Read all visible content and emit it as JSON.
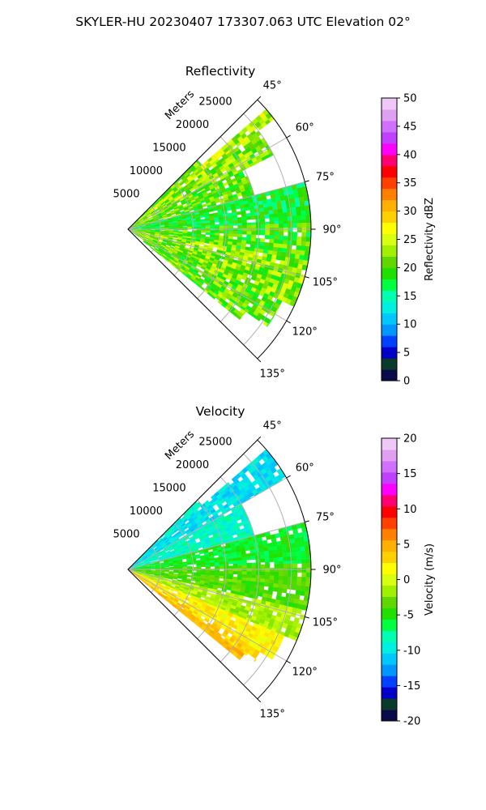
{
  "figure": {
    "suptitle": "SKYLER-HU  20230407  173307.063 UTC Elevation 02°"
  },
  "chart_data": [
    {
      "type": "ppi-sector",
      "title": "Reflectivity",
      "range_label": "Meters",
      "range_ticks": [
        5000,
        10000,
        15000,
        20000,
        25000
      ],
      "range_max": 28000,
      "azimuth_ticks": [
        45,
        60,
        75,
        90,
        105,
        120,
        135
      ],
      "azimuth_tick_labels": [
        "45°",
        "60°",
        "75°",
        "90°",
        "105°",
        "120°",
        "135°"
      ],
      "azimuth_range": [
        45,
        135
      ],
      "grid": true,
      "colorbar": {
        "label": "Reflectivity dBZ",
        "min": 0,
        "max": 50,
        "ticks": [
          0,
          5,
          10,
          15,
          20,
          25,
          30,
          35,
          40,
          45,
          50
        ],
        "stops": [
          {
            "v": 0,
            "c": "#0a0a4a"
          },
          {
            "v": 2,
            "c": "#0a3a2a"
          },
          {
            "v": 4,
            "c": "#0000c8"
          },
          {
            "v": 6,
            "c": "#0040ff"
          },
          {
            "v": 8,
            "c": "#0096ff"
          },
          {
            "v": 10,
            "c": "#00c8ff"
          },
          {
            "v": 12,
            "c": "#00f0e0"
          },
          {
            "v": 14,
            "c": "#00ffb0"
          },
          {
            "v": 16,
            "c": "#00ff40"
          },
          {
            "v": 18,
            "c": "#20e000"
          },
          {
            "v": 20,
            "c": "#60d800"
          },
          {
            "v": 22,
            "c": "#a0f000"
          },
          {
            "v": 24,
            "c": "#d8ff10"
          },
          {
            "v": 26,
            "c": "#ffff00"
          },
          {
            "v": 28,
            "c": "#ffd000"
          },
          {
            "v": 30,
            "c": "#ffb000"
          },
          {
            "v": 32,
            "c": "#ff8000"
          },
          {
            "v": 34,
            "c": "#ff4000"
          },
          {
            "v": 36,
            "c": "#ff0000"
          },
          {
            "v": 38,
            "c": "#ff0070"
          },
          {
            "v": 40,
            "c": "#ff00ff"
          },
          {
            "v": 42,
            "c": "#c040ff"
          },
          {
            "v": 44,
            "c": "#d070ff"
          },
          {
            "v": 46,
            "c": "#e0a0f0"
          },
          {
            "v": 48,
            "c": "#f0c8f8"
          },
          {
            "v": 50,
            "c": "#fff0ff"
          }
        ]
      },
      "sectors": [
        {
          "az": [
            45,
            49
          ],
          "r": [
            0,
            15000
          ],
          "value": 20,
          "variation": 4
        },
        {
          "az": [
            49,
            53
          ],
          "r": [
            0,
            28000
          ],
          "value": 23,
          "variation": 4
        },
        {
          "az": [
            53,
            63
          ],
          "r": [
            0,
            25000
          ],
          "value": 21,
          "variation": 4
        },
        {
          "az": [
            63,
            75
          ],
          "r": [
            0,
            20000
          ],
          "value": 20,
          "variation": 4
        },
        {
          "az": [
            75,
            88
          ],
          "r": [
            0,
            28000
          ],
          "value": 17,
          "variation": 3
        },
        {
          "az": [
            88,
            100
          ],
          "r": [
            0,
            28000
          ],
          "value": 19,
          "variation": 4
        },
        {
          "az": [
            100,
            115
          ],
          "r": [
            0,
            28000
          ],
          "value": 21,
          "variation": 4
        },
        {
          "az": [
            115,
            125
          ],
          "r": [
            0,
            26000
          ],
          "value": 20,
          "variation": 4
        },
        {
          "az": [
            125,
            129
          ],
          "r": [
            3000,
            22000
          ],
          "value": 20,
          "variation": 4
        }
      ]
    },
    {
      "type": "ppi-sector",
      "title": "Velocity",
      "range_label": "Meters",
      "range_ticks": [
        5000,
        10000,
        15000,
        20000,
        25000
      ],
      "range_max": 28000,
      "azimuth_ticks": [
        45,
        60,
        75,
        90,
        105,
        120,
        135
      ],
      "azimuth_tick_labels": [
        "45°",
        "60°",
        "75°",
        "90°",
        "105°",
        "120°",
        "135°"
      ],
      "azimuth_range": [
        45,
        135
      ],
      "grid": true,
      "colorbar": {
        "label": "Velocity (m/s)",
        "min": -20,
        "max": 20,
        "ticks": [
          -20,
          -15,
          -10,
          -5,
          0,
          5,
          10,
          15,
          20
        ],
        "stops": [
          {
            "v": -20,
            "c": "#0a0a4a"
          },
          {
            "v": -18.4,
            "c": "#0a3a2a"
          },
          {
            "v": -16.8,
            "c": "#0000c8"
          },
          {
            "v": -15.2,
            "c": "#0040ff"
          },
          {
            "v": -13.6,
            "c": "#0096ff"
          },
          {
            "v": -12,
            "c": "#00c8ff"
          },
          {
            "v": -10.4,
            "c": "#00f0e0"
          },
          {
            "v": -8.8,
            "c": "#00ffb0"
          },
          {
            "v": -7.2,
            "c": "#00ff40"
          },
          {
            "v": -5.6,
            "c": "#20e000"
          },
          {
            "v": -4,
            "c": "#60d800"
          },
          {
            "v": -2.4,
            "c": "#a0f000"
          },
          {
            "v": -0.8,
            "c": "#d8ff10"
          },
          {
            "v": 0.8,
            "c": "#ffff00"
          },
          {
            "v": 2.4,
            "c": "#ffd000"
          },
          {
            "v": 4,
            "c": "#ffb000"
          },
          {
            "v": 5.6,
            "c": "#ff8000"
          },
          {
            "v": 7.2,
            "c": "#ff4000"
          },
          {
            "v": 8.8,
            "c": "#ff0000"
          },
          {
            "v": 10.4,
            "c": "#ff0070"
          },
          {
            "v": 12,
            "c": "#ff00ff"
          },
          {
            "v": 13.6,
            "c": "#c040ff"
          },
          {
            "v": 15.2,
            "c": "#d070ff"
          },
          {
            "v": 16.8,
            "c": "#e0a0f0"
          },
          {
            "v": 18.4,
            "c": "#f0c8f8"
          },
          {
            "v": 20,
            "c": "#fff0ff"
          }
        ]
      },
      "sectors": [
        {
          "az": [
            45,
            49
          ],
          "r": [
            0,
            15000
          ],
          "value": -10,
          "variation": 1.5
        },
        {
          "az": [
            49,
            60
          ],
          "r": [
            0,
            28000
          ],
          "value": -11,
          "variation": 1.5
        },
        {
          "az": [
            60,
            75
          ],
          "r": [
            0,
            20000
          ],
          "value": -9.5,
          "variation": 1.5
        },
        {
          "az": [
            75,
            88
          ],
          "r": [
            0,
            28000
          ],
          "value": -6.5,
          "variation": 1.5
        },
        {
          "az": [
            88,
            103
          ],
          "r": [
            0,
            28000
          ],
          "value": -4.5,
          "variation": 1.5
        },
        {
          "az": [
            103,
            113
          ],
          "r": [
            0,
            28000
          ],
          "value": -2,
          "variation": 1.5
        },
        {
          "az": [
            113,
            122
          ],
          "r": [
            0,
            26000
          ],
          "value": 1,
          "variation": 1.5
        },
        {
          "az": [
            122,
            126
          ],
          "r": [
            0,
            24000
          ],
          "value": 2.5,
          "variation": 1.5
        },
        {
          "az": [
            126,
            129
          ],
          "r": [
            1000,
            22000
          ],
          "value": 3.5,
          "variation": 1.2
        }
      ]
    }
  ]
}
